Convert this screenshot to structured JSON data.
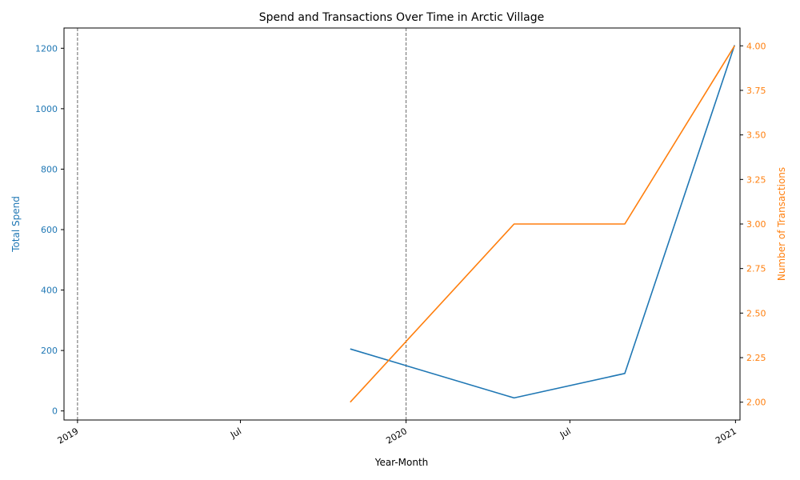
{
  "chart_data": {
    "type": "line",
    "title": "Spend and Transactions Over Time in Arctic Village",
    "xlabel": "Year-Month",
    "xlim": [
      "2018-12-17",
      "2021-01-06"
    ],
    "x_ticks": [
      {
        "date": "2019-01-01",
        "label": "2019"
      },
      {
        "date": "2019-07-01",
        "label": "Jul"
      },
      {
        "date": "2020-01-01",
        "label": "2020"
      },
      {
        "date": "2020-07-01",
        "label": "Jul"
      },
      {
        "date": "2021-01-01",
        "label": "2021"
      }
    ],
    "vertical_markers": [
      "2019-01-01",
      "2020-01-01"
    ],
    "left_axis": {
      "label": "Total Spend",
      "color": "#1f77b4",
      "ylim": [
        -30,
        1267
      ],
      "ticks": [
        0,
        200,
        400,
        600,
        800,
        1000,
        1200
      ]
    },
    "right_axis": {
      "label": "Number of Transactions",
      "color": "#ff7f0e",
      "ylim": [
        1.9,
        4.1
      ],
      "ticks": [
        "2.00",
        "2.25",
        "2.50",
        "2.75",
        "3.00",
        "3.25",
        "3.50",
        "3.75",
        "4.00"
      ]
    },
    "series": [
      {
        "axis": "left",
        "color": "#1f77b4",
        "x": [
          "2019-10-31",
          "2020-04-30",
          "2020-08-31",
          "2020-12-31"
        ],
        "values": [
          205,
          43,
          124,
          1210
        ]
      },
      {
        "axis": "right",
        "color": "#ff7f0e",
        "x": [
          "2019-10-31",
          "2020-04-30",
          "2020-08-31",
          "2020-12-31"
        ],
        "values": [
          2.0,
          3.0,
          3.0,
          4.0
        ]
      }
    ],
    "grid": false
  }
}
